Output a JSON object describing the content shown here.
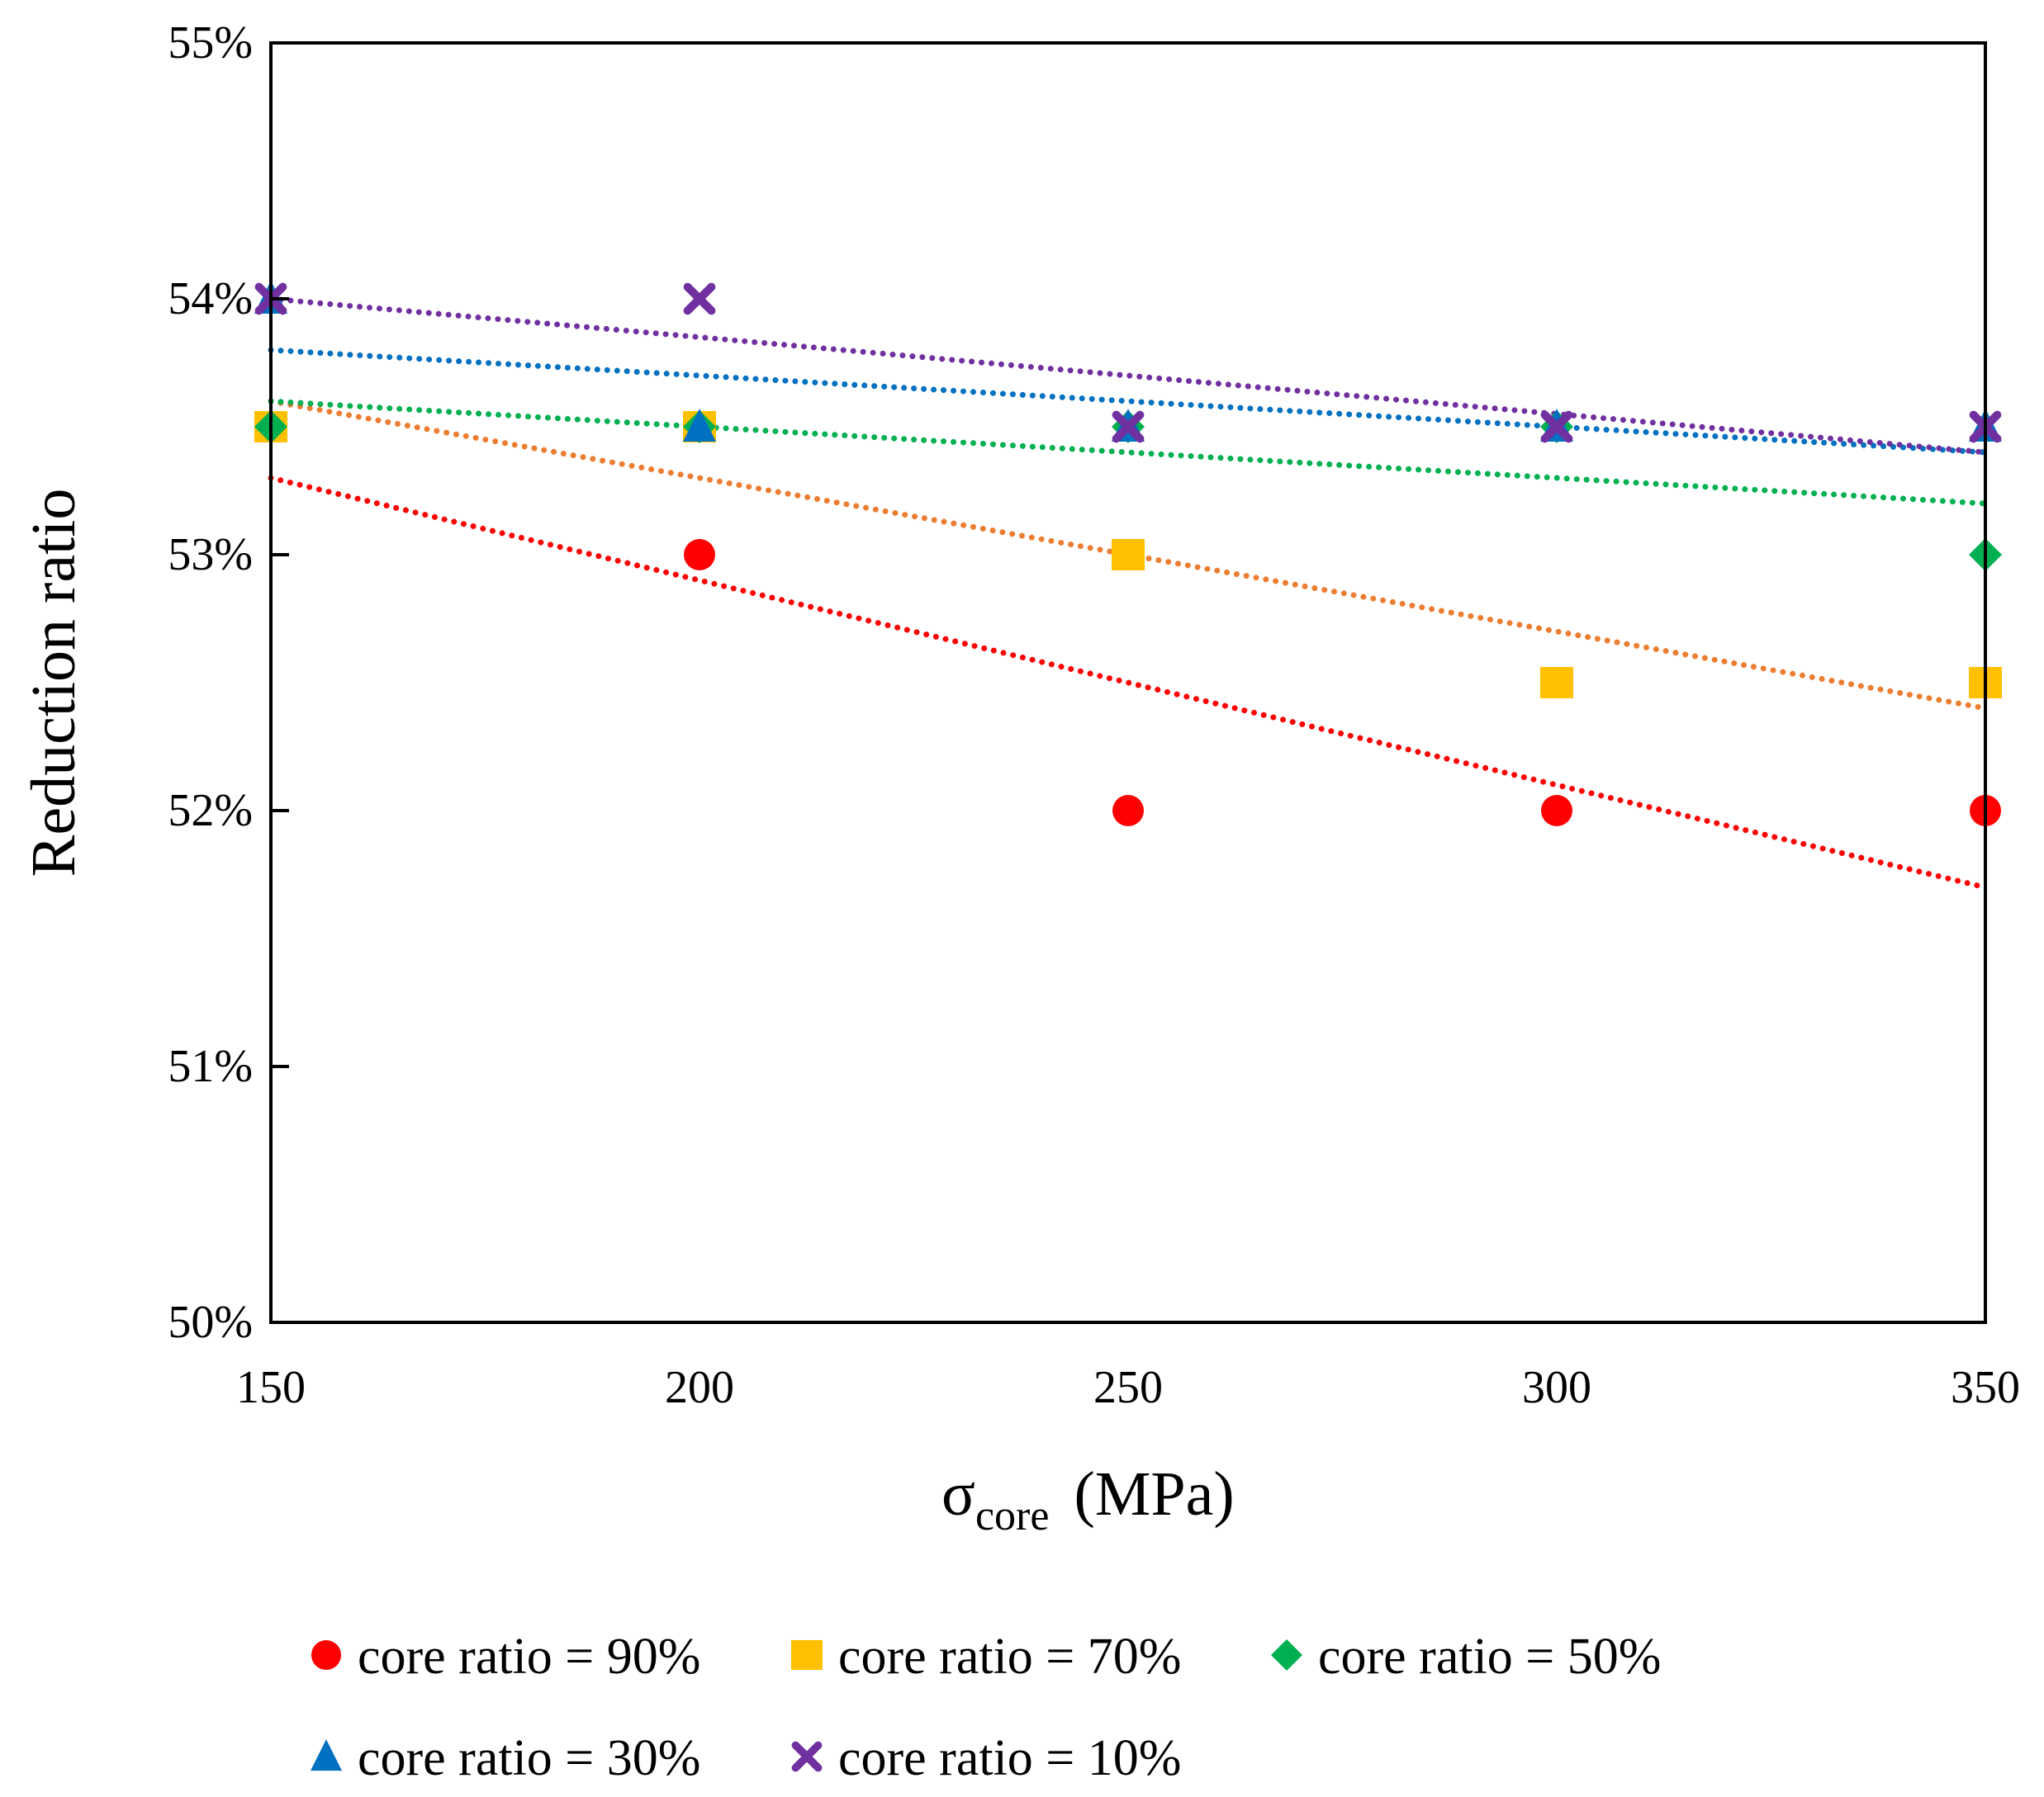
{
  "chart_data": {
    "type": "scatter",
    "title": "",
    "xlabel_main": "σ",
    "xlabel_sub": "core",
    "xlabel_unit": "(MPa)",
    "ylabel": "Reduction ratio",
    "xlim": [
      150,
      350
    ],
    "ylim": [
      50,
      55
    ],
    "x_ticks": [
      "150",
      "200",
      "250",
      "300",
      "350"
    ],
    "x_tick_values": [
      150,
      200,
      250,
      300,
      350
    ],
    "y_ticks": [
      "50%",
      "51%",
      "52%",
      "53%",
      "54%",
      "55%"
    ],
    "y_tick_values": [
      50,
      51,
      52,
      53,
      54,
      55
    ],
    "grid": false,
    "legend_position": "bottom",
    "x": [
      150,
      200,
      250,
      300,
      350
    ],
    "series": [
      {
        "name": "core ratio = 90%",
        "marker": "circle",
        "color": "#FF0000",
        "trend_color": "#FF0000",
        "values": [
          53.5,
          53,
          52,
          52,
          52
        ],
        "trend": [
          53.3,
          51.7
        ]
      },
      {
        "name": "core ratio = 70%",
        "marker": "square",
        "color": "#FFC000",
        "trend_color": "#ED7D31",
        "values": [
          53.5,
          53.5,
          53,
          52.5,
          52.5
        ],
        "trend": [
          53.6,
          52.4
        ]
      },
      {
        "name": "core ratio = 50%",
        "marker": "diamond",
        "color": "#00B050",
        "trend_color": "#00B050",
        "values": [
          53.5,
          53.5,
          53.5,
          53.5,
          53
        ],
        "trend": [
          53.6,
          53.2
        ]
      },
      {
        "name": "core ratio = 30%",
        "marker": "triangle",
        "color": "#0070C0",
        "trend_color": "#0070C0",
        "values": [
          54,
          53.5,
          53.5,
          53.5,
          53.5
        ],
        "trend": [
          53.8,
          53.4
        ]
      },
      {
        "name": "core ratio = 10%",
        "marker": "x",
        "color": "#7030A0",
        "trend_color": "#7030A0",
        "values": [
          54,
          54,
          53.5,
          53.5,
          53.5
        ],
        "trend": [
          54.0,
          53.4
        ]
      }
    ]
  }
}
